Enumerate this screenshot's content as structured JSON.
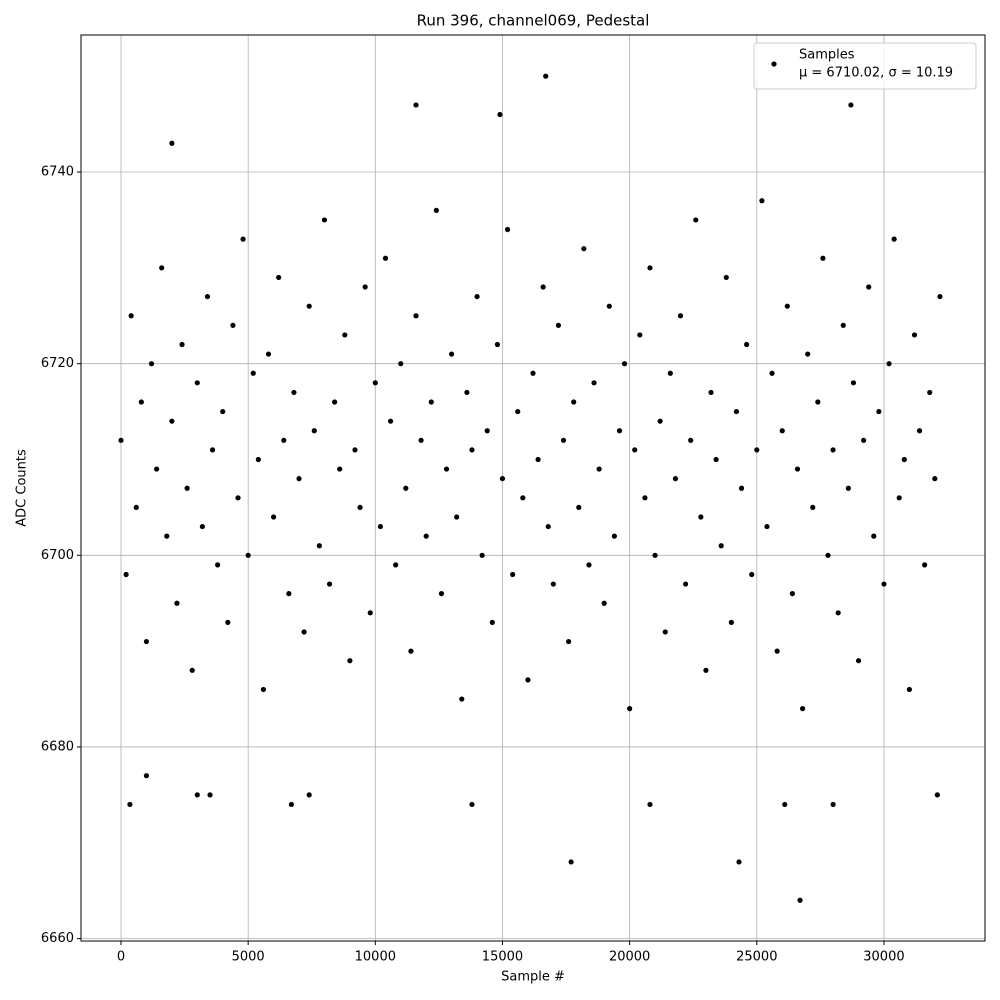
{
  "chart_data": {
    "type": "scatter",
    "title": "Run 396, channel069, Pedestal",
    "x_label": "Sample #",
    "y_label": "ADC Counts",
    "xlim": [
      -1573,
      33973
    ],
    "ylim": [
      6659.75,
      6754.3
    ],
    "xticks": [
      0,
      5000,
      10000,
      15000,
      20000,
      25000,
      30000
    ],
    "yticks": [
      6660,
      6680,
      6700,
      6720,
      6740
    ],
    "grid": true,
    "legend": "upper right",
    "legend_note": "μ = 6710.02, σ = 10.19",
    "series": [
      {
        "name": "Samples",
        "color": "#000000",
        "x": [
          0,
          200,
          400,
          600,
          800,
          1000,
          1200,
          1400,
          1600,
          1800,
          2000,
          2200,
          2400,
          2600,
          2800,
          3000,
          3200,
          3400,
          3600,
          3800,
          4000,
          4200,
          4400,
          4600,
          4800,
          5000,
          5200,
          5400,
          5600,
          5800,
          6000,
          6200,
          6400,
          6600,
          6800,
          7000,
          7200,
          7400,
          7600,
          7800,
          8000,
          8200,
          8400,
          8600,
          8800,
          9000,
          9200,
          9400,
          9600,
          9800,
          10000,
          10200,
          10400,
          10600,
          10800,
          11000,
          11200,
          11400,
          11600,
          11800,
          12000,
          12200,
          12400,
          12600,
          12800,
          13000,
          13200,
          13400,
          13600,
          13800,
          14000,
          14200,
          14400,
          14600,
          14800,
          15000,
          15200,
          15400,
          15600,
          15800,
          16000,
          16200,
          16400,
          16600,
          16800,
          17000,
          17200,
          17400,
          17600,
          17800,
          18000,
          18200,
          18400,
          18600,
          18800,
          19000,
          19200,
          19400,
          19600,
          19800,
          20000,
          20200,
          20400,
          20600,
          20800,
          21000,
          21200,
          21400,
          21600,
          21800,
          22000,
          22200,
          22400,
          22600,
          22800,
          23000,
          23200,
          23400,
          23600,
          23800,
          24000,
          24200,
          24400,
          24600,
          24800,
          25000,
          25200,
          25400,
          25600,
          25800,
          26000,
          26200,
          26400,
          26600,
          26800,
          27000,
          27200,
          27400,
          27600,
          27800,
          28000,
          28200,
          28400,
          28600,
          28800,
          29000,
          29200,
          29400,
          29600,
          29800,
          30000,
          30200,
          30400,
          30600,
          30800,
          31000,
          31200,
          31400,
          31600,
          31800,
          32000,
          32200,
          350,
          1000,
          2000,
          3000,
          3500,
          6700,
          7400,
          11600,
          13800,
          14900,
          16700,
          17700,
          20800,
          24300,
          26100,
          26700,
          28000,
          28700,
          32100
        ],
        "values": [
          6712,
          6698,
          6725,
          6705,
          6716,
          6691,
          6720,
          6709,
          6730,
          6702,
          6714,
          6695,
          6722,
          6707,
          6688,
          6718,
          6703,
          6727,
          6711,
          6699,
          6715,
          6693,
          6724,
          6706,
          6733,
          6700,
          6719,
          6710,
          6686,
          6721,
          6704,
          6729,
          6712,
          6696,
          6717,
          6708,
          6692,
          6726,
          6713,
          6701,
          6735,
          6697,
          6716,
          6709,
          6723,
          6689,
          6711,
          6705,
          6728,
          6694,
          6718,
          6703,
          6731,
          6714,
          6699,
          6720,
          6707,
          6690,
          6725,
          6712,
          6702,
          6716,
          6736,
          6696,
          6709,
          6721,
          6704,
          6685,
          6717,
          6711,
          6727,
          6700,
          6713,
          6693,
          6722,
          6708,
          6734,
          6698,
          6715,
          6706,
          6687,
          6719,
          6710,
          6728,
          6703,
          6697,
          6724,
          6712,
          6691,
          6716,
          6705,
          6732,
          6699,
          6718,
          6709,
          6695,
          6726,
          6702,
          6713,
          6720,
          6684,
          6711,
          6723,
          6706,
          6730,
          6700,
          6714,
          6692,
          6719,
          6708,
          6725,
          6697,
          6712,
          6735,
          6704,
          6688,
          6717,
          6710,
          6701,
          6729,
          6693,
          6715,
          6707,
          6722,
          6698,
          6711,
          6737,
          6703,
          6719,
          6690,
          6713,
          6726,
          6696,
          6709,
          6684,
          6721,
          6705,
          6716,
          6731,
          6700,
          6711,
          6694,
          6724,
          6707,
          6718,
          6689,
          6712,
          6728,
          6702,
          6715,
          6697,
          6720,
          6733,
          6706,
          6710,
          6686,
          6723,
          6713,
          6699,
          6717,
          6708,
          6727,
          6674,
          6677,
          6743,
          6675,
          6675,
          6674,
          6675,
          6747,
          6674,
          6746,
          6750,
          6668,
          6674,
          6668,
          6674,
          6664,
          6674,
          6747,
          6675
        ]
      }
    ]
  }
}
